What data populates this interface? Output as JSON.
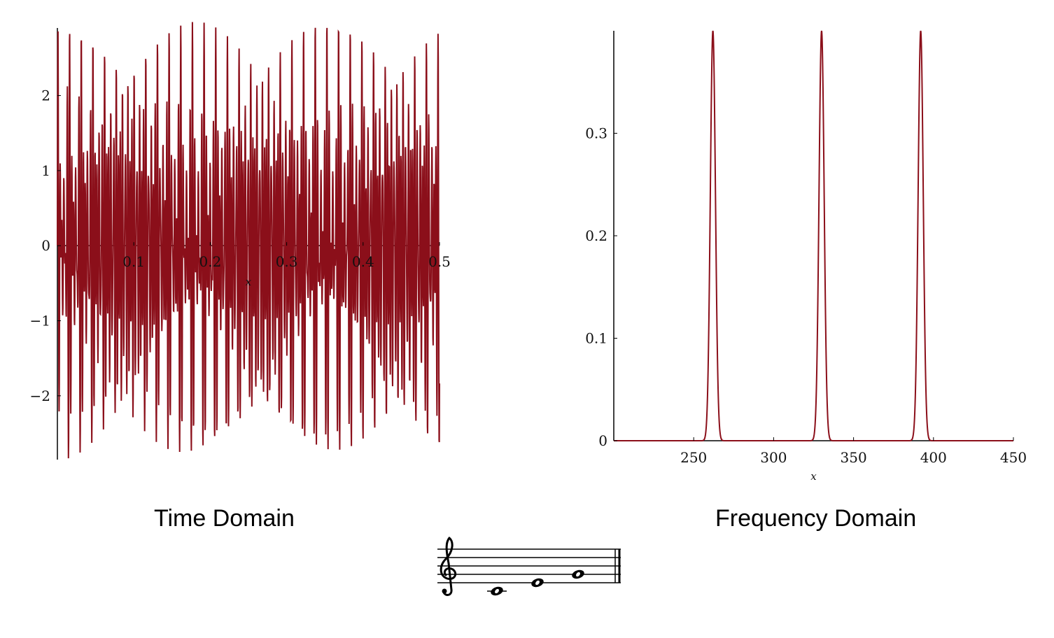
{
  "captions": {
    "time": "Time Domain",
    "frequency": "Frequency Domain"
  },
  "colors": {
    "curve": "#8b0f1a",
    "axis": "#000000"
  },
  "chart_data": [
    {
      "type": "line",
      "name": "time-domain",
      "xlabel": "x",
      "ylabel": "",
      "xlim": [
        0,
        0.5
      ],
      "ylim": [
        -2.85,
        2.9
      ],
      "xticks": [
        0.1,
        0.2,
        0.3,
        0.4,
        0.5
      ],
      "xtick_labels": [
        "0.1",
        "0.2",
        "0.3",
        "0.4",
        "0.5"
      ],
      "yticks": [
        -2,
        -1,
        0,
        1,
        2
      ],
      "ytick_labels": [
        "−2",
        "−1",
        "0",
        "1",
        "2"
      ],
      "signal": {
        "components": [
          {
            "frequency": 261.63,
            "amplitude": 1.0
          },
          {
            "frequency": 329.63,
            "amplitude": 1.0
          },
          {
            "frequency": 392.0,
            "amplitude": 1.0
          }
        ],
        "samples": 1800
      },
      "grid": false
    },
    {
      "type": "line",
      "name": "frequency-domain",
      "xlabel": "x",
      "ylabel": "",
      "xlim": [
        200,
        450
      ],
      "ylim": [
        0,
        0.4
      ],
      "xticks": [
        250,
        300,
        350,
        400,
        450
      ],
      "xtick_labels": [
        "250",
        "300",
        "350",
        "400",
        "450"
      ],
      "yticks": [
        0,
        0.1,
        0.2,
        0.3
      ],
      "ytick_labels": [
        "0",
        "0.1",
        "0.2",
        "0.3"
      ],
      "peaks": [
        {
          "x": 262,
          "y": 0.4
        },
        {
          "x": 330,
          "y": 0.4
        },
        {
          "x": 392,
          "y": 0.4
        }
      ],
      "grid": false
    }
  ],
  "notation": {
    "clef": "treble-clef-icon",
    "notes": [
      "C4",
      "E4",
      "G4"
    ]
  }
}
